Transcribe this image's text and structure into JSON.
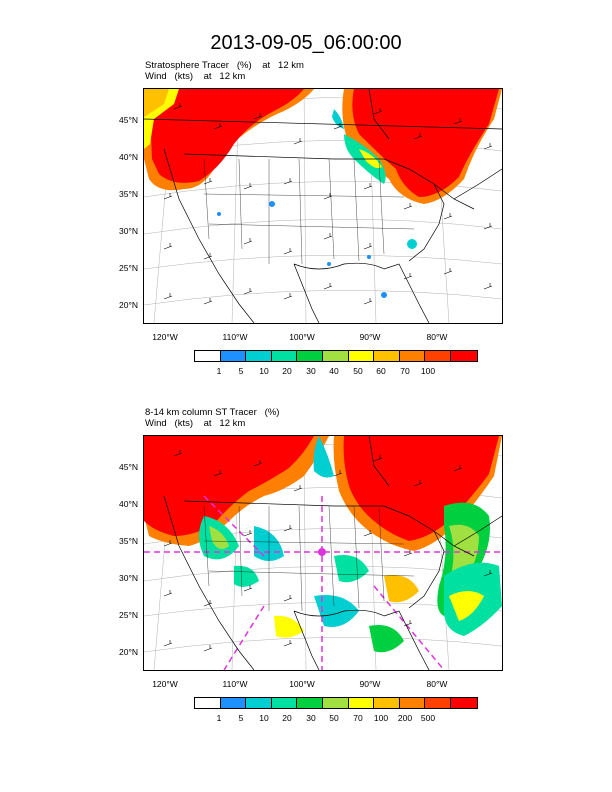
{
  "title": "2013-09-05_06:00:00",
  "panel1": {
    "line1": "Stratosphere Tracer   (%)    at   12 km",
    "line2": "Wind   (kts)    at   12 km",
    "lat_labels": [
      "45°N",
      "40°N",
      "35°N",
      "30°N",
      "25°N",
      "20°N"
    ],
    "lon_labels": [
      "120°W",
      "110°W",
      "100°W",
      "90°W",
      "80°W"
    ],
    "colorbar_labels": [
      "1",
      "5",
      "10",
      "20",
      "30",
      "40",
      "50",
      "60",
      "70",
      "100"
    ]
  },
  "panel2": {
    "line1": "8-14 km column ST Tracer   (%)",
    "line2": "Wind   (kts)    at   12 km",
    "lat_labels": [
      "45°N",
      "40°N",
      "35°N",
      "30°N",
      "25°N",
      "20°N"
    ],
    "lon_labels": [
      "120°W",
      "110°W",
      "100°W",
      "90°W",
      "80°W"
    ],
    "colorbar_labels": [
      "1",
      "5",
      "10",
      "20",
      "30",
      "50",
      "70",
      "100",
      "200",
      "500"
    ]
  },
  "colors": [
    "#ffffff",
    "#1e90ff",
    "#00ced1",
    "#00e0a0",
    "#00d040",
    "#a0e040",
    "#ffff00",
    "#ffc000",
    "#ff8000",
    "#ff4000",
    "#ff0000"
  ],
  "cross_section_line_color": "#dd33dd"
}
